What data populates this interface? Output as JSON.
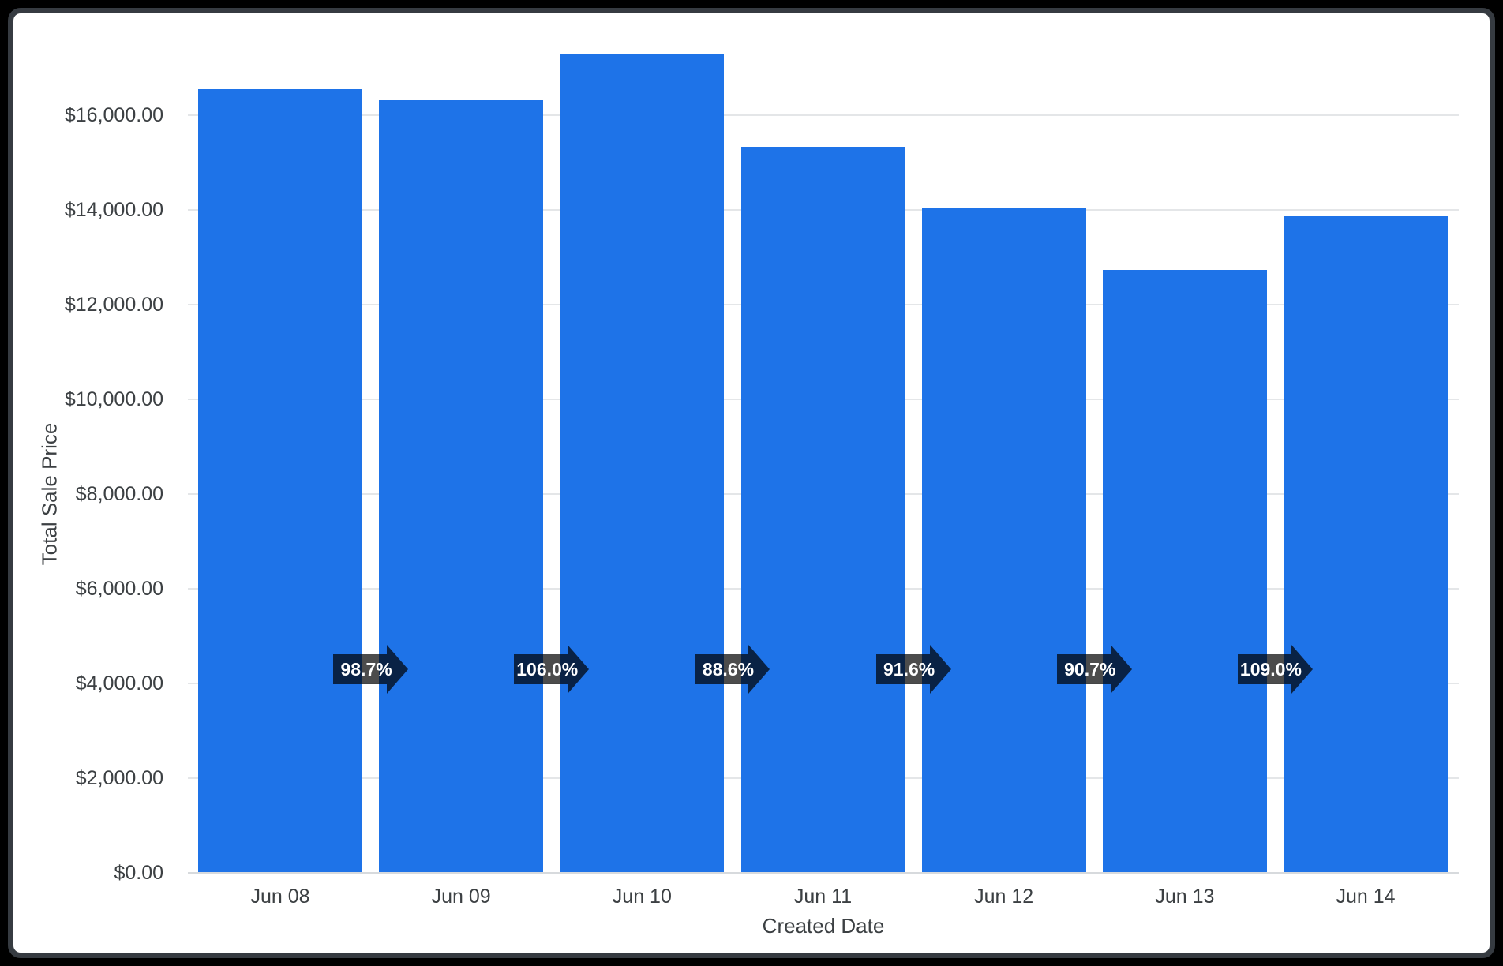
{
  "frame": {
    "page_background": "#000000",
    "card_background": "#ffffff",
    "card_border_color": "#363b41"
  },
  "chart_data": {
    "type": "bar",
    "title": "",
    "xlabel": "Created Date",
    "ylabel": "Total Sale Price",
    "categories": [
      "Jun 08",
      "Jun 09",
      "Jun 10",
      "Jun 11",
      "Jun 12",
      "Jun 13",
      "Jun 14"
    ],
    "series": [
      {
        "name": "Total Sale Price",
        "values": [
          16550,
          16320,
          17300,
          15330,
          14030,
          12730,
          13870
        ]
      }
    ],
    "growth_badges": {
      "description": "period-over-period percentage shown as right-pointing arrow between adjacent bars",
      "labels": [
        "98.7%",
        "106.0%",
        "88.6%",
        "91.6%",
        "90.7%",
        "109.0%"
      ],
      "background": "rgba(0, 0, 0, 0.7)",
      "text_color": "#ffffff",
      "center_value": 4300
    },
    "y_ticks": {
      "values": [
        0,
        2000,
        4000,
        6000,
        8000,
        10000,
        12000,
        14000,
        16000
      ],
      "labels": [
        "$0.00",
        "$2,000.00",
        "$4,000.00",
        "$6,000.00",
        "$8,000.00",
        "$10,000.00",
        "$12,000.00",
        "$14,000.00",
        "$16,000.00"
      ]
    },
    "ylim": [
      0,
      18150
    ],
    "grid": true,
    "legend": false,
    "bar_color": "#1e73e8",
    "gridline_color": "#e4e6e8",
    "axis_line_color": "#d7dadd",
    "label_color": "#3c4043"
  }
}
